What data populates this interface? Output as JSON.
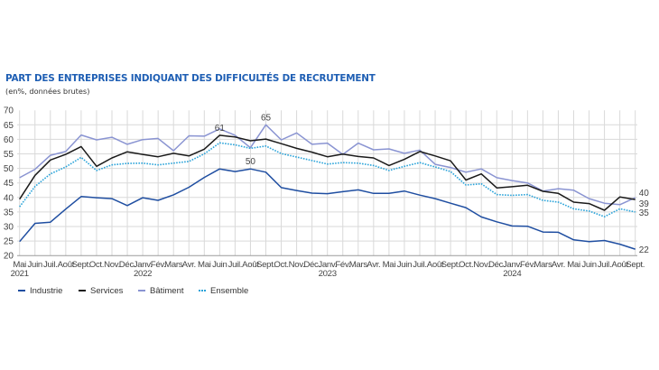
{
  "header": {
    "title": "PART DES ENTREPRISES INDIQUANT DES DIFFICULTÉS DE RECRUTEMENT",
    "subtitle": "(en%, données brutes)"
  },
  "chart_data": {
    "type": "line",
    "title": "PART DES ENTREPRISES INDIQUANT DES DIFFICULTÉS DE RECRUTEMENT",
    "subtitle": "(en%, données brutes)",
    "xlabel": "",
    "ylabel": "",
    "ylim": [
      20,
      70
    ],
    "yticks": [
      20,
      25,
      30,
      35,
      40,
      45,
      50,
      55,
      60,
      65,
      70
    ],
    "grid": true,
    "legend_position": "bottom-left",
    "x": [
      "Mai",
      "Juin",
      "Juil.",
      "Août",
      "Sept.",
      "Oct.",
      "Nov.",
      "Déc.",
      "Janv.",
      "Fév.",
      "Mars",
      "Avr.",
      "Mai",
      "Juin",
      "Juil.",
      "Août",
      "Sept.",
      "Oct.",
      "Nov.",
      "Déc.",
      "Janv.",
      "Fév.",
      "Mars",
      "Avr.",
      "Mai",
      "Juin",
      "Juil.",
      "Août",
      "Sept.",
      "Oct.",
      "Nov.",
      "Déc.",
      "Janv.",
      "Fév.",
      "Mars",
      "Avr.",
      "Mai",
      "Juin",
      "Juil.",
      "Août",
      "Sept."
    ],
    "year_labels": [
      {
        "index": 0,
        "label": "2021"
      },
      {
        "index": 8,
        "label": "2022"
      },
      {
        "index": 20,
        "label": "2023"
      },
      {
        "index": 32,
        "label": "2024"
      }
    ],
    "series": [
      {
        "name": "Industrie",
        "color": "#1f4ea1",
        "style": "solid",
        "values": [
          24.8,
          31.1,
          31.5,
          36.0,
          40.3,
          39.9,
          39.6,
          37.2,
          39.9,
          39.0,
          40.9,
          43.5,
          46.9,
          49.8,
          48.9,
          49.8,
          48.7,
          43.4,
          42.4,
          41.5,
          41.3,
          42.0,
          42.6,
          41.4,
          41.4,
          42.2,
          40.8,
          39.6,
          38.0,
          36.5,
          33.3,
          31.6,
          30.2,
          30.1,
          28.1,
          28.0,
          25.4,
          24.8,
          25.2,
          23.9,
          22.2
        ]
      },
      {
        "name": "Services",
        "color": "#1a1a1a",
        "style": "solid",
        "values": [
          39.4,
          47.6,
          52.9,
          54.8,
          57.5,
          50.7,
          53.6,
          55.7,
          54.8,
          54.0,
          55.2,
          54.3,
          56.6,
          61.4,
          60.8,
          59.5,
          60.1,
          58.5,
          56.9,
          55.6,
          54.0,
          54.9,
          54.1,
          53.6,
          51.0,
          53.1,
          55.8,
          54.3,
          52.6,
          46.0,
          48.1,
          43.3,
          43.7,
          44.2,
          42.1,
          41.4,
          38.4,
          37.9,
          35.6,
          40.2,
          39.3
        ]
      },
      {
        "name": "Bâtiment",
        "color": "#8a94d2",
        "style": "solid",
        "values": [
          46.8,
          49.7,
          54.5,
          55.8,
          61.5,
          59.8,
          60.7,
          58.3,
          59.9,
          60.3,
          56.1,
          61.2,
          61.1,
          63.6,
          61.4,
          57.1,
          65.0,
          59.8,
          62.2,
          58.3,
          58.7,
          54.8,
          58.7,
          56.4,
          56.7,
          55.2,
          56.3,
          51.4,
          50.3,
          48.7,
          49.8,
          46.8,
          45.8,
          45.0,
          42.2,
          43.0,
          42.5,
          39.6,
          38.0,
          37.5,
          39.9
        ]
      },
      {
        "name": "Ensemble",
        "color": "#2aa3d9",
        "style": "dotted",
        "values": [
          36.8,
          43.8,
          48.1,
          50.5,
          53.8,
          49.3,
          51.2,
          51.7,
          51.8,
          51.2,
          51.8,
          52.4,
          55.0,
          58.8,
          58.1,
          56.9,
          57.7,
          55.1,
          53.9,
          52.7,
          51.5,
          52.0,
          51.8,
          51.0,
          49.3,
          50.7,
          52.0,
          50.5,
          48.9,
          44.3,
          44.7,
          41.0,
          40.7,
          41.0,
          39.0,
          38.4,
          36.1,
          35.3,
          33.4,
          36.1,
          35.0
        ]
      }
    ],
    "annotations": [
      {
        "series": "Services",
        "index": 13,
        "text": "61"
      },
      {
        "series": "Bâtiment",
        "index": 16,
        "text": "65"
      },
      {
        "series": "Industrie",
        "index": 15,
        "text": "50"
      },
      {
        "series": "Bâtiment",
        "index": 40,
        "text": "40",
        "position": "end"
      },
      {
        "series": "Services",
        "index": 40,
        "text": "39",
        "position": "end"
      },
      {
        "series": "Ensemble",
        "index": 40,
        "text": "35",
        "position": "end"
      },
      {
        "series": "Industrie",
        "index": 40,
        "text": "22",
        "position": "end"
      }
    ]
  },
  "legend": [
    {
      "label": "Industrie",
      "color": "#1f4ea1",
      "style": "solid"
    },
    {
      "label": "Services",
      "color": "#1a1a1a",
      "style": "solid"
    },
    {
      "label": "Bâtiment",
      "color": "#8a94d2",
      "style": "solid"
    },
    {
      "label": "Ensemble",
      "color": "#2aa3d9",
      "style": "dotted"
    }
  ]
}
